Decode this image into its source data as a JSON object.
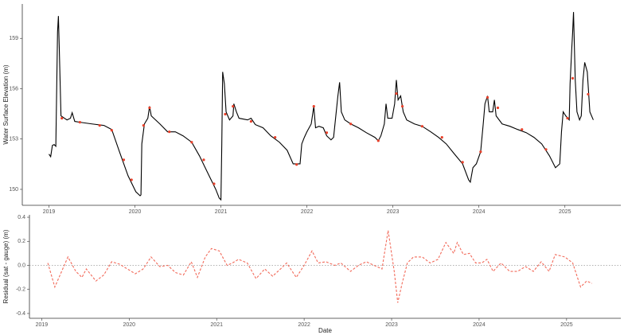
{
  "chart_data": [
    {
      "type": "line",
      "y_label": "Water Surface Elevation (m)",
      "xlim": [
        2018.69,
        2025.65
      ],
      "xticks": [
        2019,
        2020,
        2021,
        2022,
        2023,
        2024,
        2025
      ],
      "ylim": [
        149.05,
        161.05
      ],
      "yticks": [
        150,
        153,
        156,
        159
      ],
      "series": [
        {
          "color": "#000000",
          "mode": "lines",
          "line_style": "solid",
          "x": [
            2019.0,
            2019.02,
            2019.04,
            2019.06,
            2019.08,
            2019.1,
            2019.11,
            2019.12,
            2019.14,
            2019.18,
            2019.21,
            2019.25,
            2019.27,
            2019.3,
            2019.36,
            2019.5,
            2019.64,
            2019.73,
            2019.82,
            2019.92,
            2020.01,
            2020.06,
            2020.07,
            2020.08,
            2020.11,
            2020.15,
            2020.17,
            2020.19,
            2020.29,
            2020.38,
            2020.47,
            2020.56,
            2020.66,
            2020.75,
            2020.84,
            2020.94,
            2020.98,
            2021.0,
            2021.01,
            2021.02,
            2021.04,
            2021.06,
            2021.1,
            2021.14,
            2021.15,
            2021.18,
            2021.21,
            2021.31,
            2021.35,
            2021.4,
            2021.49,
            2021.58,
            2021.68,
            2021.77,
            2021.84,
            2021.92,
            2021.94,
            2021.97,
            2022.0,
            2022.05,
            2022.08,
            2022.1,
            2022.14,
            2022.19,
            2022.23,
            2022.28,
            2022.31,
            2022.36,
            2022.38,
            2022.4,
            2022.44,
            2022.51,
            2022.6,
            2022.69,
            2022.79,
            2022.83,
            2022.86,
            2022.9,
            2022.92,
            2022.94,
            2022.99,
            2023.02,
            2023.04,
            2023.06,
            2023.09,
            2023.12,
            2023.16,
            2023.25,
            2023.34,
            2023.44,
            2023.53,
            2023.62,
            2023.71,
            2023.81,
            2023.88,
            2023.9,
            2023.93,
            2023.97,
            2024.02,
            2024.05,
            2024.07,
            2024.1,
            2024.12,
            2024.16,
            2024.18,
            2024.2,
            2024.27,
            2024.36,
            2024.45,
            2024.55,
            2024.64,
            2024.73,
            2024.82,
            2024.89,
            2024.94,
            2024.96,
            2024.98,
            2025.01,
            2025.05,
            2025.06,
            2025.08,
            2025.09,
            2025.1,
            2025.12,
            2025.14,
            2025.17,
            2025.19,
            2025.21,
            2025.23,
            2025.26,
            2025.29,
            2025.33
          ],
          "values": [
            152.1,
            151.95,
            152.62,
            152.67,
            152.57,
            159.38,
            160.33,
            158.43,
            154.38,
            154.24,
            154.14,
            154.24,
            154.57,
            154.05,
            154.0,
            153.9,
            153.81,
            153.57,
            152.24,
            150.81,
            149.86,
            149.62,
            149.67,
            152.71,
            153.9,
            154.24,
            154.95,
            154.38,
            153.9,
            153.43,
            153.43,
            153.19,
            152.81,
            152.0,
            151.05,
            150.0,
            149.48,
            149.38,
            152.71,
            157.0,
            156.29,
            154.62,
            154.14,
            154.38,
            155.1,
            154.62,
            154.24,
            154.14,
            154.24,
            153.86,
            153.67,
            153.19,
            152.81,
            152.33,
            151.52,
            151.52,
            152.71,
            153.1,
            153.43,
            153.9,
            154.95,
            153.67,
            153.76,
            153.67,
            153.19,
            152.95,
            153.1,
            155.57,
            156.38,
            154.62,
            154.14,
            153.9,
            153.67,
            153.38,
            153.1,
            152.9,
            153.19,
            153.9,
            155.1,
            154.24,
            154.24,
            155.1,
            156.52,
            155.33,
            155.57,
            154.62,
            154.14,
            153.9,
            153.76,
            153.43,
            153.1,
            152.71,
            152.14,
            151.52,
            150.57,
            150.43,
            151.29,
            151.52,
            152.24,
            153.9,
            155.1,
            155.57,
            154.62,
            154.62,
            155.33,
            154.38,
            153.9,
            153.76,
            153.57,
            153.38,
            153.1,
            152.71,
            152.0,
            151.29,
            151.52,
            153.43,
            154.62,
            154.38,
            154.14,
            156.29,
            158.43,
            159.38,
            160.57,
            156.52,
            154.62,
            154.14,
            154.38,
            156.52,
            157.57,
            157.0,
            154.62,
            154.14
          ]
        },
        {
          "color": "#e8402a",
          "mode": "markers",
          "x": [
            2019.15,
            2019.36,
            2019.59,
            2019.73,
            2019.87,
            2019.96,
            2020.1,
            2020.17,
            2020.4,
            2020.66,
            2020.8,
            2020.92,
            2021.05,
            2021.14,
            2021.35,
            2021.63,
            2021.88,
            2022.08,
            2022.23,
            2022.51,
            2022.83,
            2023.04,
            2023.11,
            2023.34,
            2023.57,
            2023.81,
            2024.02,
            2024.1,
            2024.22,
            2024.5,
            2024.78,
            2025.03,
            2025.09,
            2025.27
          ],
          "values": [
            154.24,
            154.0,
            153.81,
            153.52,
            151.76,
            150.57,
            153.81,
            154.86,
            153.43,
            152.81,
            151.76,
            150.33,
            154.48,
            154.95,
            154.05,
            153.1,
            151.48,
            154.95,
            153.38,
            153.9,
            152.9,
            155.71,
            154.95,
            153.76,
            153.1,
            151.62,
            152.24,
            155.48,
            154.86,
            153.57,
            152.38,
            154.24,
            156.62,
            155.67
          ]
        }
      ]
    },
    {
      "type": "line",
      "x_label": "Date",
      "y_label": "Residual (sat - gauge) (m)",
      "xlim": [
        2018.86,
        2025.62
      ],
      "xticks": [
        2019,
        2020,
        2021,
        2022,
        2023,
        2024,
        2025
      ],
      "ylim": [
        -0.44,
        0.42
      ],
      "yticks": [
        0.4,
        0.2,
        {
          "value": 0,
          "label": "0.0"
        },
        -0.2,
        -0.4
      ],
      "hline": 0,
      "hline_color": "#999999",
      "series": [
        {
          "color": "#f26b5b",
          "mode": "lines",
          "line_style": "dashed",
          "x": [
            2019.07,
            2019.15,
            2019.21,
            2019.3,
            2019.39,
            2019.46,
            2019.51,
            2019.62,
            2019.71,
            2019.8,
            2019.89,
            2019.98,
            2020.07,
            2020.16,
            2020.25,
            2020.35,
            2020.44,
            2020.53,
            2020.62,
            2020.71,
            2020.78,
            2020.87,
            2020.94,
            2021.03,
            2021.12,
            2021.18,
            2021.25,
            2021.35,
            2021.45,
            2021.55,
            2021.64,
            2021.73,
            2021.8,
            2021.91,
            2022.0,
            2022.09,
            2022.16,
            2022.25,
            2022.35,
            2022.42,
            2022.53,
            2022.62,
            2022.71,
            2022.8,
            2022.89,
            2022.96,
            2023.03,
            2023.07,
            2023.12,
            2023.18,
            2023.25,
            2023.35,
            2023.44,
            2023.53,
            2023.62,
            2023.71,
            2023.75,
            2023.82,
            2023.89,
            2023.96,
            2024.03,
            2024.09,
            2024.16,
            2024.25,
            2024.35,
            2024.44,
            2024.53,
            2024.62,
            2024.71,
            2024.8,
            2024.87,
            2024.98,
            2025.07,
            2025.16,
            2025.23,
            2025.29
          ],
          "values": [
            0.02,
            -0.18,
            -0.08,
            0.07,
            -0.05,
            -0.1,
            -0.03,
            -0.13,
            -0.08,
            0.03,
            0.01,
            -0.03,
            -0.07,
            -0.03,
            0.07,
            -0.01,
            0.0,
            -0.06,
            -0.08,
            0.03,
            -0.1,
            0.07,
            0.14,
            0.12,
            0.0,
            0.02,
            0.05,
            0.02,
            -0.11,
            -0.03,
            -0.09,
            -0.03,
            0.02,
            -0.1,
            0.0,
            0.12,
            0.02,
            0.03,
            0.0,
            0.02,
            -0.05,
            0.0,
            0.03,
            0.0,
            -0.03,
            0.29,
            -0.05,
            -0.31,
            -0.15,
            0.02,
            0.07,
            0.07,
            0.02,
            0.05,
            0.19,
            0.1,
            0.19,
            0.09,
            0.1,
            0.02,
            0.02,
            0.05,
            -0.05,
            0.02,
            -0.05,
            -0.05,
            -0.01,
            -0.05,
            0.03,
            -0.05,
            0.09,
            0.07,
            0.02,
            -0.18,
            -0.13,
            -0.15
          ]
        }
      ]
    }
  ]
}
